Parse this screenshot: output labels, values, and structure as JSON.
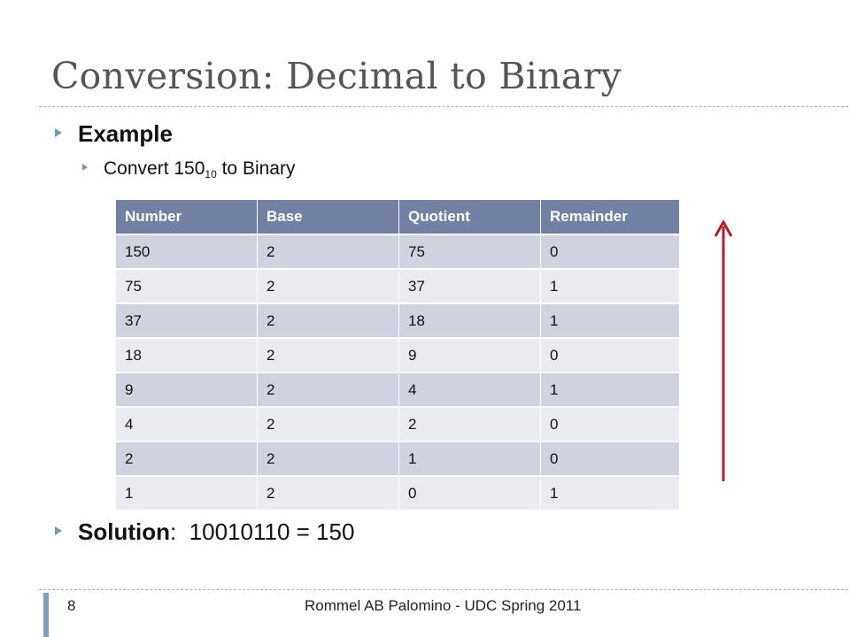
{
  "slide": {
    "title": "Conversion: Decimal to Binary"
  },
  "bullets": {
    "example_label": "Example",
    "convert_prefix": "Convert 150",
    "convert_subscript": "10",
    "convert_suffix": " to Binary",
    "solution_label": "Solution",
    "solution_rest": ":  10010110 = 150"
  },
  "table": {
    "headers": [
      "Number",
      "Base",
      "Quotient",
      "Remainder"
    ],
    "rows": [
      [
        "150",
        "2",
        "75",
        "0"
      ],
      [
        "75",
        "2",
        "37",
        "1"
      ],
      [
        "37",
        "2",
        "18",
        "1"
      ],
      [
        "18",
        "2",
        "9",
        "0"
      ],
      [
        "9",
        "2",
        "4",
        "1"
      ],
      [
        "4",
        "2",
        "2",
        "0"
      ],
      [
        "2",
        "2",
        "1",
        "0"
      ],
      [
        "1",
        "2",
        "0",
        "1"
      ]
    ]
  },
  "footer": {
    "page_number": "8",
    "text": "Rommel AB Palomino - UDC Spring 2011"
  },
  "colors": {
    "table_header": "#7280a4",
    "row_dark": "#cfd3e0",
    "row_light": "#e9ebf1",
    "arrow": "#b11e2f",
    "bullet": "#7a97b0"
  }
}
